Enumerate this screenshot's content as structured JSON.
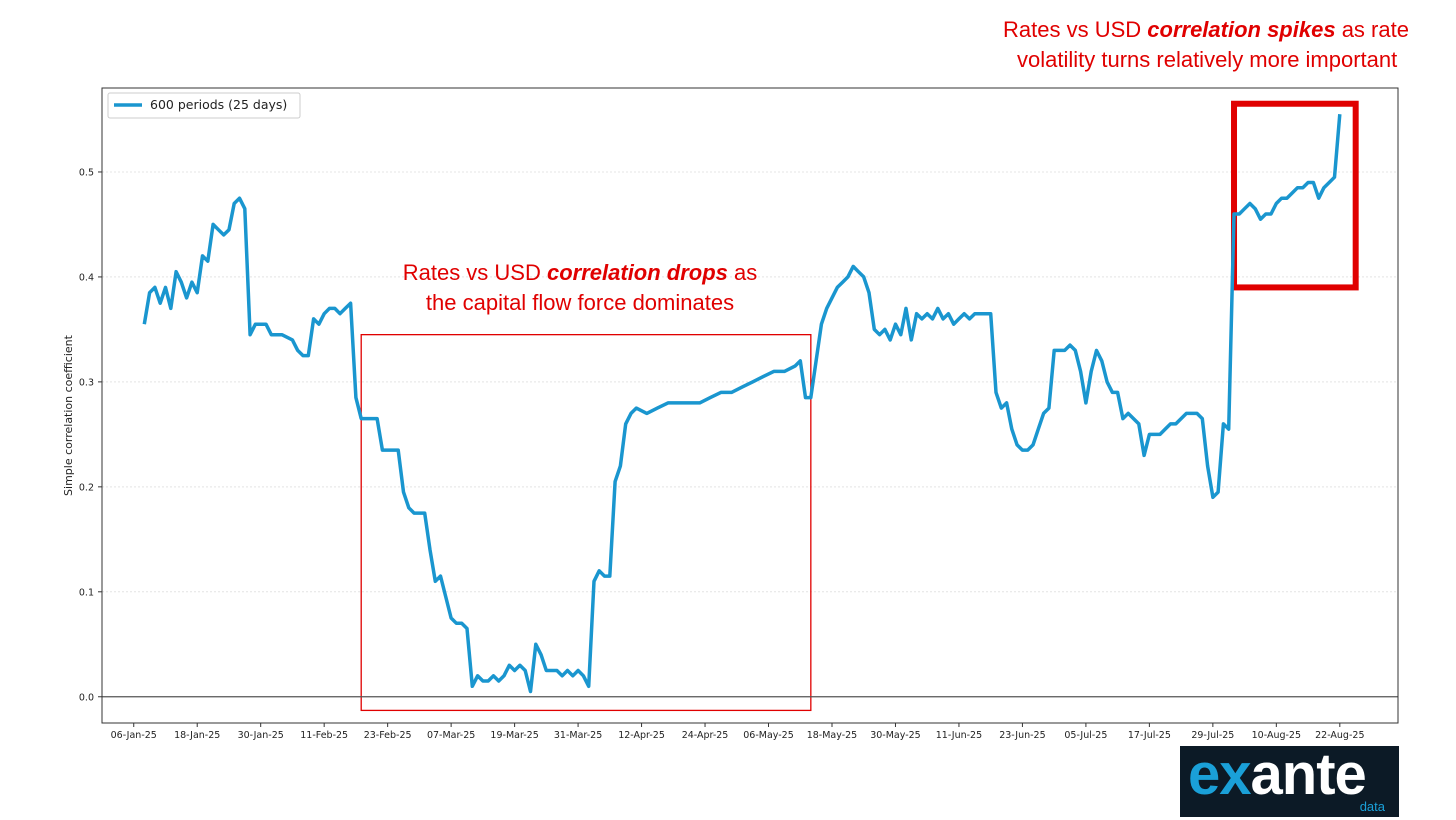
{
  "chart_data": {
    "type": "line",
    "ylabel": "Simple correlation coefficient",
    "xlabel": "",
    "ylim": [
      -0.025,
      0.58
    ],
    "xlim": [
      "2024-12-31",
      "2025-09-02"
    ],
    "y_ticks": [
      0.0,
      0.1,
      0.2,
      0.3,
      0.4,
      0.5
    ],
    "y_tick_labels": [
      "0.0",
      "0.1",
      "0.2",
      "0.3",
      "0.4",
      "0.5"
    ],
    "x_ticks": [
      "2025-01-06",
      "2025-01-18",
      "2025-01-30",
      "2025-02-11",
      "2025-02-23",
      "2025-03-07",
      "2025-03-19",
      "2025-03-31",
      "2025-04-12",
      "2025-04-24",
      "2025-05-06",
      "2025-05-18",
      "2025-05-30",
      "2025-06-11",
      "2025-06-23",
      "2025-07-05",
      "2025-07-17",
      "2025-07-29",
      "2025-08-10",
      "2025-08-22"
    ],
    "x_tick_labels": [
      "06-Jan-25",
      "18-Jan-25",
      "30-Jan-25",
      "11-Feb-25",
      "23-Feb-25",
      "07-Mar-25",
      "19-Mar-25",
      "31-Mar-25",
      "12-Apr-25",
      "24-Apr-25",
      "06-May-25",
      "18-May-25",
      "30-May-25",
      "11-Jun-25",
      "23-Jun-25",
      "05-Jul-25",
      "17-Jul-25",
      "29-Jul-25",
      "10-Aug-25",
      "22-Aug-25"
    ],
    "legend_position": "top-left",
    "grid": "horizontal",
    "series": [
      {
        "name": "600 periods (25 days)",
        "color": "#1a96cf",
        "points": [
          [
            "2025-01-08",
            0.355
          ],
          [
            "2025-01-09",
            0.385
          ],
          [
            "2025-01-10",
            0.39
          ],
          [
            "2025-01-11",
            0.375
          ],
          [
            "2025-01-12",
            0.39
          ],
          [
            "2025-01-13",
            0.37
          ],
          [
            "2025-01-14",
            0.405
          ],
          [
            "2025-01-15",
            0.395
          ],
          [
            "2025-01-16",
            0.38
          ],
          [
            "2025-01-17",
            0.395
          ],
          [
            "2025-01-18",
            0.385
          ],
          [
            "2025-01-19",
            0.42
          ],
          [
            "2025-01-20",
            0.415
          ],
          [
            "2025-01-21",
            0.45
          ],
          [
            "2025-01-22",
            0.445
          ],
          [
            "2025-01-23",
            0.44
          ],
          [
            "2025-01-24",
            0.445
          ],
          [
            "2025-01-25",
            0.47
          ],
          [
            "2025-01-26",
            0.475
          ],
          [
            "2025-01-27",
            0.465
          ],
          [
            "2025-01-28",
            0.345
          ],
          [
            "2025-01-29",
            0.355
          ],
          [
            "2025-01-31",
            0.355
          ],
          [
            "2025-02-01",
            0.345
          ],
          [
            "2025-02-03",
            0.345
          ],
          [
            "2025-02-05",
            0.34
          ],
          [
            "2025-02-06",
            0.33
          ],
          [
            "2025-02-07",
            0.325
          ],
          [
            "2025-02-08",
            0.325
          ],
          [
            "2025-02-09",
            0.36
          ],
          [
            "2025-02-10",
            0.355
          ],
          [
            "2025-02-11",
            0.365
          ],
          [
            "2025-02-12",
            0.37
          ],
          [
            "2025-02-13",
            0.37
          ],
          [
            "2025-02-14",
            0.365
          ],
          [
            "2025-02-15",
            0.37
          ],
          [
            "2025-02-16",
            0.375
          ],
          [
            "2025-02-17",
            0.285
          ],
          [
            "2025-02-18",
            0.265
          ],
          [
            "2025-02-19",
            0.265
          ],
          [
            "2025-02-20",
            0.265
          ],
          [
            "2025-02-21",
            0.265
          ],
          [
            "2025-02-22",
            0.235
          ],
          [
            "2025-02-23",
            0.235
          ],
          [
            "2025-02-24",
            0.235
          ],
          [
            "2025-02-25",
            0.235
          ],
          [
            "2025-02-26",
            0.195
          ],
          [
            "2025-02-27",
            0.18
          ],
          [
            "2025-02-28",
            0.175
          ],
          [
            "2025-03-01",
            0.175
          ],
          [
            "2025-03-02",
            0.175
          ],
          [
            "2025-03-03",
            0.14
          ],
          [
            "2025-03-04",
            0.11
          ],
          [
            "2025-03-05",
            0.115
          ],
          [
            "2025-03-06",
            0.095
          ],
          [
            "2025-03-07",
            0.075
          ],
          [
            "2025-03-08",
            0.07
          ],
          [
            "2025-03-09",
            0.07
          ],
          [
            "2025-03-10",
            0.065
          ],
          [
            "2025-03-11",
            0.01
          ],
          [
            "2025-03-12",
            0.02
          ],
          [
            "2025-03-13",
            0.015
          ],
          [
            "2025-03-14",
            0.015
          ],
          [
            "2025-03-15",
            0.02
          ],
          [
            "2025-03-16",
            0.015
          ],
          [
            "2025-03-17",
            0.02
          ],
          [
            "2025-03-18",
            0.03
          ],
          [
            "2025-03-19",
            0.025
          ],
          [
            "2025-03-20",
            0.03
          ],
          [
            "2025-03-21",
            0.025
          ],
          [
            "2025-03-22",
            0.005
          ],
          [
            "2025-03-23",
            0.05
          ],
          [
            "2025-03-24",
            0.04
          ],
          [
            "2025-03-25",
            0.025
          ],
          [
            "2025-03-26",
            0.025
          ],
          [
            "2025-03-27",
            0.025
          ],
          [
            "2025-03-28",
            0.02
          ],
          [
            "2025-03-29",
            0.025
          ],
          [
            "2025-03-30",
            0.02
          ],
          [
            "2025-03-31",
            0.025
          ],
          [
            "2025-04-01",
            0.02
          ],
          [
            "2025-04-02",
            0.01
          ],
          [
            "2025-04-03",
            0.11
          ],
          [
            "2025-04-04",
            0.12
          ],
          [
            "2025-04-05",
            0.115
          ],
          [
            "2025-04-06",
            0.115
          ],
          [
            "2025-04-07",
            0.205
          ],
          [
            "2025-04-08",
            0.22
          ],
          [
            "2025-04-09",
            0.26
          ],
          [
            "2025-04-10",
            0.27
          ],
          [
            "2025-04-11",
            0.275
          ],
          [
            "2025-04-13",
            0.27
          ],
          [
            "2025-04-15",
            0.275
          ],
          [
            "2025-04-17",
            0.28
          ],
          [
            "2025-04-19",
            0.28
          ],
          [
            "2025-04-21",
            0.28
          ],
          [
            "2025-04-23",
            0.28
          ],
          [
            "2025-04-25",
            0.285
          ],
          [
            "2025-04-27",
            0.29
          ],
          [
            "2025-04-29",
            0.29
          ],
          [
            "2025-05-01",
            0.295
          ],
          [
            "2025-05-03",
            0.3
          ],
          [
            "2025-05-05",
            0.305
          ],
          [
            "2025-05-07",
            0.31
          ],
          [
            "2025-05-09",
            0.31
          ],
          [
            "2025-05-11",
            0.315
          ],
          [
            "2025-05-12",
            0.32
          ],
          [
            "2025-05-13",
            0.285
          ],
          [
            "2025-05-14",
            0.285
          ],
          [
            "2025-05-15",
            0.32
          ],
          [
            "2025-05-16",
            0.355
          ],
          [
            "2025-05-17",
            0.37
          ],
          [
            "2025-05-18",
            0.38
          ],
          [
            "2025-05-19",
            0.39
          ],
          [
            "2025-05-20",
            0.395
          ],
          [
            "2025-05-21",
            0.4
          ],
          [
            "2025-05-22",
            0.41
          ],
          [
            "2025-05-23",
            0.405
          ],
          [
            "2025-05-24",
            0.4
          ],
          [
            "2025-05-25",
            0.385
          ],
          [
            "2025-05-26",
            0.35
          ],
          [
            "2025-05-27",
            0.345
          ],
          [
            "2025-05-28",
            0.35
          ],
          [
            "2025-05-29",
            0.34
          ],
          [
            "2025-05-30",
            0.355
          ],
          [
            "2025-05-31",
            0.345
          ],
          [
            "2025-06-01",
            0.37
          ],
          [
            "2025-06-02",
            0.34
          ],
          [
            "2025-06-03",
            0.365
          ],
          [
            "2025-06-04",
            0.36
          ],
          [
            "2025-06-05",
            0.365
          ],
          [
            "2025-06-06",
            0.36
          ],
          [
            "2025-06-07",
            0.37
          ],
          [
            "2025-06-08",
            0.36
          ],
          [
            "2025-06-09",
            0.365
          ],
          [
            "2025-06-10",
            0.355
          ],
          [
            "2025-06-11",
            0.36
          ],
          [
            "2025-06-12",
            0.365
          ],
          [
            "2025-06-13",
            0.36
          ],
          [
            "2025-06-14",
            0.365
          ],
          [
            "2025-06-15",
            0.365
          ],
          [
            "2025-06-16",
            0.365
          ],
          [
            "2025-06-17",
            0.365
          ],
          [
            "2025-06-18",
            0.29
          ],
          [
            "2025-06-19",
            0.275
          ],
          [
            "2025-06-20",
            0.28
          ],
          [
            "2025-06-21",
            0.255
          ],
          [
            "2025-06-22",
            0.24
          ],
          [
            "2025-06-23",
            0.235
          ],
          [
            "2025-06-24",
            0.235
          ],
          [
            "2025-06-25",
            0.24
          ],
          [
            "2025-06-26",
            0.255
          ],
          [
            "2025-06-27",
            0.27
          ],
          [
            "2025-06-28",
            0.275
          ],
          [
            "2025-06-29",
            0.33
          ],
          [
            "2025-06-30",
            0.33
          ],
          [
            "2025-07-01",
            0.33
          ],
          [
            "2025-07-02",
            0.335
          ],
          [
            "2025-07-03",
            0.33
          ],
          [
            "2025-07-04",
            0.31
          ],
          [
            "2025-07-05",
            0.28
          ],
          [
            "2025-07-06",
            0.31
          ],
          [
            "2025-07-07",
            0.33
          ],
          [
            "2025-07-08",
            0.32
          ],
          [
            "2025-07-09",
            0.3
          ],
          [
            "2025-07-10",
            0.29
          ],
          [
            "2025-07-11",
            0.29
          ],
          [
            "2025-07-12",
            0.265
          ],
          [
            "2025-07-13",
            0.27
          ],
          [
            "2025-07-14",
            0.265
          ],
          [
            "2025-07-15",
            0.26
          ],
          [
            "2025-07-16",
            0.23
          ],
          [
            "2025-07-17",
            0.25
          ],
          [
            "2025-07-18",
            0.25
          ],
          [
            "2025-07-19",
            0.25
          ],
          [
            "2025-07-20",
            0.255
          ],
          [
            "2025-07-21",
            0.26
          ],
          [
            "2025-07-22",
            0.26
          ],
          [
            "2025-07-23",
            0.265
          ],
          [
            "2025-07-24",
            0.27
          ],
          [
            "2025-07-25",
            0.27
          ],
          [
            "2025-07-26",
            0.27
          ],
          [
            "2025-07-27",
            0.265
          ],
          [
            "2025-07-28",
            0.22
          ],
          [
            "2025-07-29",
            0.19
          ],
          [
            "2025-07-30",
            0.195
          ],
          [
            "2025-07-31",
            0.26
          ],
          [
            "2025-08-01",
            0.255
          ],
          [
            "2025-08-02",
            0.46
          ],
          [
            "2025-08-03",
            0.46
          ],
          [
            "2025-08-04",
            0.465
          ],
          [
            "2025-08-05",
            0.47
          ],
          [
            "2025-08-06",
            0.465
          ],
          [
            "2025-08-07",
            0.455
          ],
          [
            "2025-08-08",
            0.46
          ],
          [
            "2025-08-09",
            0.46
          ],
          [
            "2025-08-10",
            0.47
          ],
          [
            "2025-08-11",
            0.475
          ],
          [
            "2025-08-12",
            0.475
          ],
          [
            "2025-08-13",
            0.48
          ],
          [
            "2025-08-14",
            0.485
          ],
          [
            "2025-08-15",
            0.485
          ],
          [
            "2025-08-16",
            0.49
          ],
          [
            "2025-08-17",
            0.49
          ],
          [
            "2025-08-18",
            0.475
          ],
          [
            "2025-08-19",
            0.485
          ],
          [
            "2025-08-20",
            0.49
          ],
          [
            "2025-08-21",
            0.495
          ],
          [
            "2025-08-22",
            0.555
          ]
        ]
      }
    ],
    "highlight_boxes": [
      {
        "x_range": [
          "2025-02-18",
          "2025-05-14"
        ],
        "y_range": [
          -0.013,
          0.345
        ],
        "color": "#e00000",
        "weight": "thin"
      },
      {
        "x_range": [
          "2025-08-02",
          "2025-08-25"
        ],
        "y_range": [
          0.39,
          0.565
        ],
        "color": "#e00000",
        "weight": "thick"
      }
    ]
  },
  "annotations": {
    "drops": {
      "line1_pre": "Rates vs USD ",
      "line1_em": "correlation drops",
      "line1_post": " as",
      "line2": "the capital flow force dominates"
    },
    "spikes": {
      "line1_pre": "Rates vs USD ",
      "line1_em": "correlation spikes",
      "line1_post": " as rate",
      "line2": "volatility turns relatively more important"
    }
  },
  "logo": {
    "ex": "ex",
    "ante": "ante",
    "sub": "data"
  }
}
